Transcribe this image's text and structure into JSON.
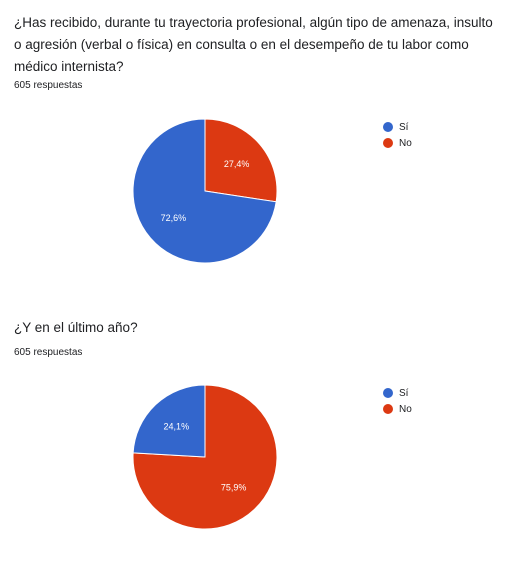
{
  "colors": {
    "si": "#3366cc",
    "no": "#dc3912"
  },
  "chart_data": [
    {
      "type": "pie",
      "title": "¿Has recibido, durante tu trayectoria profesional, algún tipo de amenaza, insulto o agresión (verbal o física) en consulta o en el desempeño de tu labor como médico internista?",
      "responses_label": "605 respuestas",
      "categories": [
        "Sí",
        "No"
      ],
      "values": [
        72.6,
        27.4
      ],
      "labels": [
        "72,6%",
        "27,4%"
      ],
      "legend": [
        "Sí",
        "No"
      ],
      "legend_position": "right"
    },
    {
      "type": "pie",
      "title": "¿Y en el último año?",
      "responses_label": "605 respuestas",
      "categories": [
        "Sí",
        "No"
      ],
      "values": [
        24.1,
        75.9
      ],
      "labels": [
        "24,1%",
        "75,9%"
      ],
      "legend": [
        "Sí",
        "No"
      ],
      "legend_position": "right"
    }
  ]
}
